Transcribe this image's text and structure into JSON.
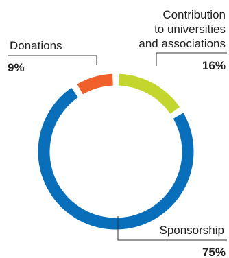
{
  "chart_data": {
    "type": "pie",
    "style": "donut",
    "legend": "none",
    "slices": [
      {
        "label": "Contribution to universities and associations",
        "label_lines": [
          "Contribution",
          "to universities",
          "and associations"
        ],
        "value": 16,
        "value_label": "16%",
        "color": "#c3d62d"
      },
      {
        "label": "Sponsorship",
        "label_lines": [
          "Sponsorship"
        ],
        "value": 75,
        "value_label": "75%",
        "color": "#0a6fbb"
      },
      {
        "label": "Donations",
        "label_lines": [
          "Donations"
        ],
        "value": 9,
        "value_label": "9%",
        "color": "#f0602a"
      }
    ]
  }
}
